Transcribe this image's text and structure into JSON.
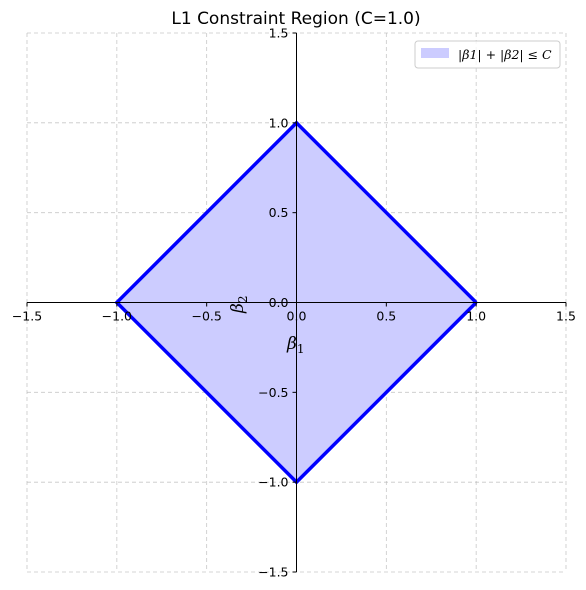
{
  "chart_data": {
    "type": "area",
    "title": "L1 Constraint Region (C=1.0)",
    "xlabel": "β",
    "xlabel_sub": "1",
    "ylabel": "β",
    "ylabel_sub": "2",
    "xlim": [
      -1.5,
      1.5
    ],
    "ylim": [
      -1.5,
      1.5
    ],
    "xticks": [
      -1.5,
      -1.0,
      -0.5,
      0.0,
      0.5,
      1.0,
      1.5
    ],
    "yticks": [
      -1.5,
      -1.0,
      -0.5,
      0.0,
      0.5,
      1.0,
      1.5
    ],
    "xtick_labels": [
      "−1.5",
      "−1.0",
      "−0.5",
      "0.0",
      "0.5",
      "1.0",
      "1.5"
    ],
    "ytick_labels": [
      "−1.5",
      "−1.0",
      "−0.5",
      "0.0",
      "0.5",
      "1.0",
      "1.5"
    ],
    "grid": true,
    "legend_position": "top-right",
    "series": [
      {
        "name": "|β1| + |β2| ≤ C",
        "x": [
          1.0,
          0.0,
          -1.0,
          0.0,
          1.0
        ],
        "y": [
          0.0,
          1.0,
          0.0,
          -1.0,
          0.0
        ],
        "fill_color": "#ccccff",
        "line_color": "#0000ff"
      }
    ]
  }
}
